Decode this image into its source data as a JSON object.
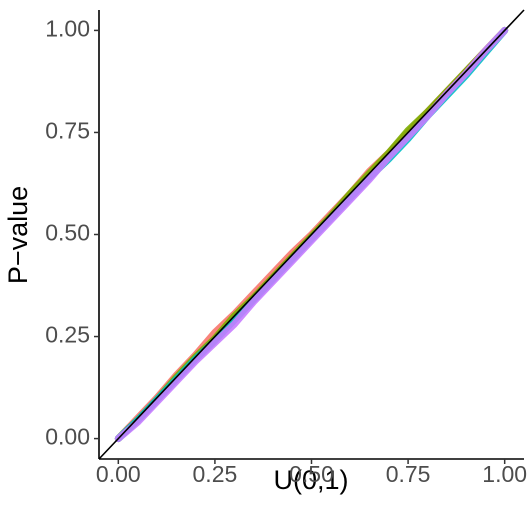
{
  "chart_data": {
    "type": "line",
    "x_label": "U(0,1)",
    "y_label": "P−value",
    "x": [
      0,
      0.05,
      0.1,
      0.15,
      0.2,
      0.25,
      0.3,
      0.35,
      0.4,
      0.45,
      0.5,
      0.55,
      0.6,
      0.65,
      0.7,
      0.75,
      0.8,
      0.85,
      0.9,
      0.95,
      1
    ],
    "series": [
      {
        "color": "#F8766D",
        "values": [
          0,
          0.05,
          0.1,
          0.155,
          0.205,
          0.26,
          0.305,
          0.355,
          0.405,
          0.455,
          0.5,
          0.55,
          0.6,
          0.655,
          0.7,
          0.75,
          0.8,
          0.85,
          0.9,
          0.95,
          1
        ]
      },
      {
        "color": "#7CAE00",
        "values": [
          0,
          0.045,
          0.095,
          0.15,
          0.2,
          0.245,
          0.3,
          0.345,
          0.395,
          0.445,
          0.495,
          0.545,
          0.6,
          0.65,
          0.7,
          0.755,
          0.8,
          0.85,
          0.9,
          0.95,
          1
        ]
      },
      {
        "color": "#00BFC4",
        "values": [
          0,
          0.045,
          0.095,
          0.145,
          0.195,
          0.24,
          0.29,
          0.34,
          0.39,
          0.44,
          0.49,
          0.54,
          0.59,
          0.64,
          0.685,
          0.735,
          0.79,
          0.84,
          0.89,
          0.945,
          1
        ]
      },
      {
        "color": "#C77CFF",
        "values": [
          0,
          0.04,
          0.09,
          0.14,
          0.19,
          0.235,
          0.28,
          0.335,
          0.385,
          0.435,
          0.485,
          0.535,
          0.585,
          0.635,
          0.69,
          0.74,
          0.79,
          0.845,
          0.895,
          0.95,
          1
        ]
      }
    ],
    "reference_line": {
      "intercept": 0,
      "slope": 1,
      "color": "#000000"
    },
    "xlim": [
      -0.05,
      1.05
    ],
    "ylim": [
      -0.05,
      1.05
    ],
    "xticks": [
      {
        "value": 0,
        "label": "0.00"
      },
      {
        "value": 0.25,
        "label": "0.25"
      },
      {
        "value": 0.5,
        "label": "0.50"
      },
      {
        "value": 0.75,
        "label": "0.75"
      },
      {
        "value": 1,
        "label": "1.00"
      }
    ],
    "yticks": [
      {
        "value": 0,
        "label": "0.00"
      },
      {
        "value": 0.25,
        "label": "0.25"
      },
      {
        "value": 0.5,
        "label": "0.50"
      },
      {
        "value": 0.75,
        "label": "0.75"
      },
      {
        "value": 1,
        "label": "1.00"
      }
    ],
    "grid": false
  }
}
